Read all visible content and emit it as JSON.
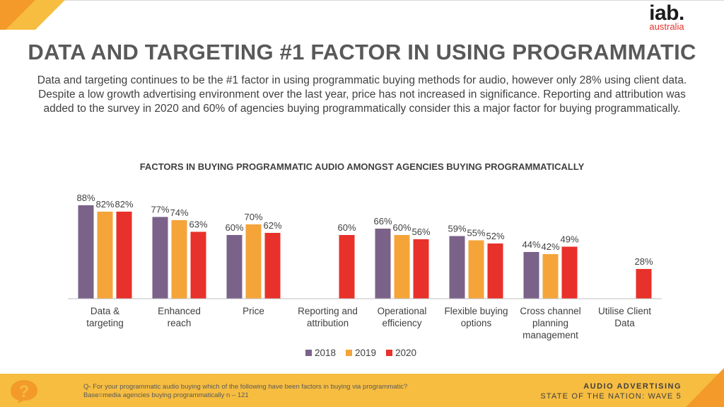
{
  "header": {
    "logo_main": "iab.",
    "logo_sub": "australia",
    "title": "DATA AND TARGETING #1 FACTOR IN USING PROGRAMMATIC",
    "description": "Data and targeting continues to be the #1 factor in using programmatic buying methods for audio, however only 28% using client data. Despite a low growth advertising environment over the last year, price has not increased in significance. Reporting and attribution was added to the survey in 2020 and 60% of agencies buying programmatically consider this a major factor for buying programmatically."
  },
  "colors": {
    "accent": "#f6bd41",
    "brand_red": "#e8312a"
  },
  "chart_data": {
    "type": "bar",
    "title": "FACTORS IN BUYING PROGRAMMATIC AUDIO AMONGST AGENCIES BUYING PROGRAMMATICALLY",
    "categories": [
      [
        "Data &",
        "targeting"
      ],
      [
        "Enhanced",
        "reach"
      ],
      [
        "Price"
      ],
      [
        "Reporting and",
        "attribution"
      ],
      [
        "Operational",
        "efficiency"
      ],
      [
        "Flexible buying",
        "options"
      ],
      [
        "Cross channel",
        "planning",
        "management"
      ],
      [
        "Utilise Client",
        "Data"
      ]
    ],
    "series": [
      {
        "name": "2018",
        "color": "#7b6289",
        "values": [
          88,
          77,
          60,
          null,
          66,
          59,
          44,
          null
        ]
      },
      {
        "name": "2019",
        "color": "#f5a43a",
        "values": [
          82,
          74,
          70,
          null,
          60,
          55,
          42,
          null
        ]
      },
      {
        "name": "2020",
        "color": "#e8312a",
        "values": [
          82,
          63,
          62,
          60,
          56,
          52,
          49,
          28
        ]
      }
    ],
    "value_suffix": "%",
    "ylim": [
      0,
      100
    ],
    "grid": false,
    "legend_position": "bottom-center"
  },
  "footer": {
    "question_line1": "Q- For your programmatic audio buying which of the following have been factors in buying via programmatic?",
    "question_line2": "Base=media agencies buying programmatically n – 121",
    "brand_line1": "AUDIO ADVERTISING",
    "brand_line2": "STATE OF THE NATION: WAVE 5",
    "question_icon": "question-mark-icon"
  }
}
